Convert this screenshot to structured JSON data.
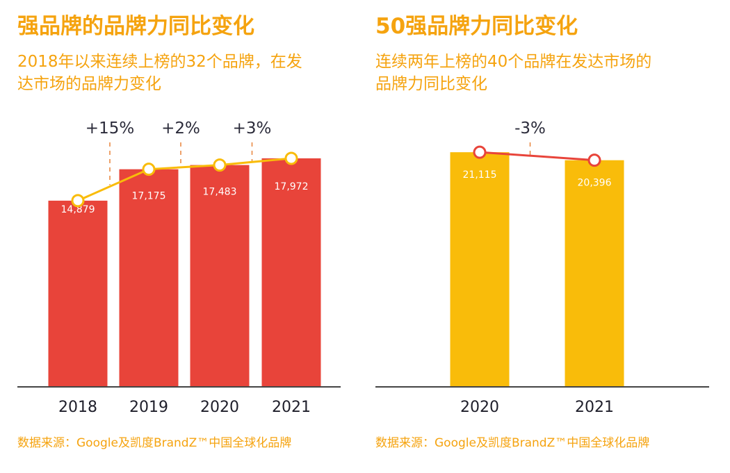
{
  "colors": {
    "text_accent": "#f5a30f",
    "bar_left": "#e8443a",
    "line_left": "#f9bc0a",
    "bar_right": "#f9bc0a",
    "line_right": "#e8443a",
    "axis": "#444444",
    "dash": "#e8843a"
  },
  "chart_data": [
    {
      "type": "bar",
      "title": "强品牌的品牌力同比变化",
      "subtitle_lines": [
        "2018年以来连续上榜的32个品牌，在发",
        "达市场的品牌力变化"
      ],
      "categories": [
        "2018",
        "2019",
        "2020",
        "2021"
      ],
      "values": [
        14879,
        17175,
        17483,
        17972
      ],
      "value_labels": [
        "14,879",
        "17,175",
        "17,483",
        "17,972"
      ],
      "overlay": "line",
      "changes": [
        "+15%",
        "+2%",
        "+3%"
      ],
      "source": "数据来源：Google及凯度BrandZ™中国全球化品牌"
    },
    {
      "type": "bar",
      "title": "50强品牌力同比变化",
      "subtitle_lines": [
        "连续两年上榜的40个品牌在发达市场的",
        "品牌力同比变化"
      ],
      "categories": [
        "2020",
        "2021"
      ],
      "values": [
        21115,
        20396
      ],
      "value_labels": [
        "21,115",
        "20,396"
      ],
      "overlay": "line",
      "changes": [
        "-3%"
      ],
      "source": "数据来源：Google及凯度BrandZ™中国全球化品牌"
    }
  ]
}
